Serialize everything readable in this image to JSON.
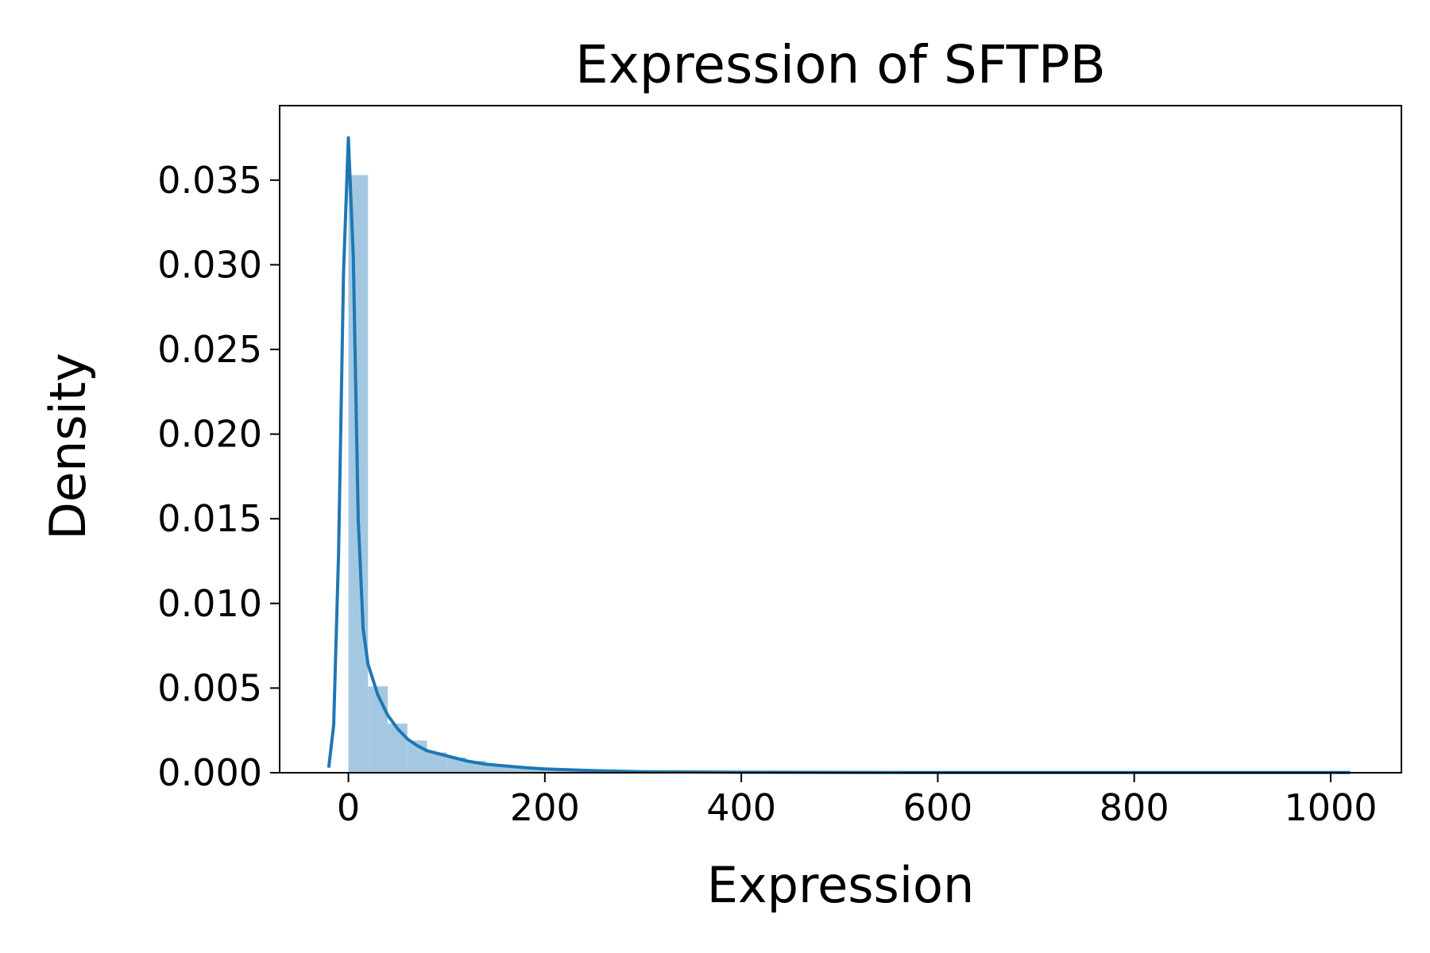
{
  "chart_data": {
    "type": "histogram",
    "title": "Expression of SFTPB",
    "xlabel": "Expression",
    "ylabel": "Density",
    "xlim": [
      -70,
      1072
    ],
    "ylim": [
      0,
      0.0394
    ],
    "grid": false,
    "legend": "none",
    "colors": {
      "bar": "#a4c8e1",
      "line": "#1f77b4"
    },
    "x_ticks": [
      {
        "value": 0,
        "label": "0"
      },
      {
        "value": 200,
        "label": "200"
      },
      {
        "value": 400,
        "label": "400"
      },
      {
        "value": 600,
        "label": "600"
      },
      {
        "value": 800,
        "label": "800"
      },
      {
        "value": 1000,
        "label": "1000"
      }
    ],
    "y_ticks": [
      {
        "value": 0,
        "label": "0.000"
      },
      {
        "value": 0.005,
        "label": "0.005"
      },
      {
        "value": 0.01,
        "label": "0.010"
      },
      {
        "value": 0.015,
        "label": "0.015"
      },
      {
        "value": 0.02,
        "label": "0.020"
      },
      {
        "value": 0.025,
        "label": "0.025"
      },
      {
        "value": 0.03,
        "label": "0.030"
      },
      {
        "value": 0.035,
        "label": "0.035"
      }
    ],
    "histogram": {
      "bin_edges": [
        0,
        20,
        40,
        60,
        80,
        100,
        120,
        140,
        160,
        180,
        200,
        220,
        240,
        260,
        280,
        300,
        340,
        400,
        500,
        600,
        700,
        800,
        900,
        1020
      ],
      "densities": [
        0.0353,
        0.0051,
        0.0029,
        0.0019,
        0.0012,
        0.0009,
        0.0007,
        0.0005,
        0.0004,
        0.0003,
        0.0002,
        0.00015,
        0.0001,
        8e-05,
        6e-05,
        5e-05,
        3e-05,
        2e-05,
        1e-05,
        1e-05,
        1e-05,
        1e-05,
        1e-05
      ]
    },
    "kde": {
      "x": [
        -20,
        -15,
        -10,
        -5,
        0,
        5,
        10,
        15,
        20,
        25,
        30,
        40,
        50,
        60,
        70,
        80,
        100,
        120,
        140,
        160,
        180,
        200,
        250,
        300,
        400,
        500,
        600,
        800,
        1000,
        1020
      ],
      "y": [
        0.0003,
        0.0028,
        0.013,
        0.0295,
        0.0375,
        0.0305,
        0.015,
        0.0085,
        0.0064,
        0.0055,
        0.0046,
        0.0034,
        0.0026,
        0.002,
        0.0016,
        0.0013,
        0.001,
        0.0007,
        0.0005,
        0.0004,
        0.0003,
        0.00022,
        0.00012,
        6e-05,
        3e-05,
        2e-05,
        1e-05,
        1e-05,
        1e-05,
        1e-05
      ]
    }
  }
}
